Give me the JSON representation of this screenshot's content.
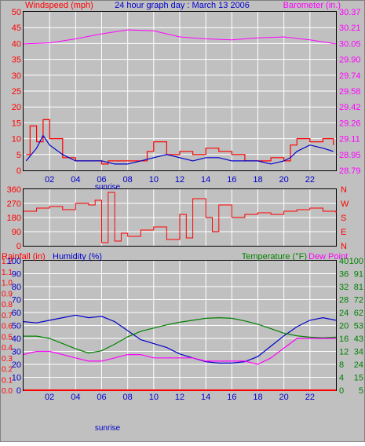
{
  "colors": {
    "panel_bg": "#c0c0c0",
    "windspeed": "#ff0000",
    "wind_avg": "#0000cc",
    "barometer": "#ff00ff",
    "direction": "#ff0000",
    "rainfall": "#ff0000",
    "humidity": "#0000cc",
    "temperature": "#008000",
    "dewpoint": "#ff00ff",
    "title": "#0000cc",
    "grid": "#ffffff"
  },
  "header": {
    "windspeed_label": "Windspeed (mph)",
    "title": "24 hour graph day : March 13 2006",
    "barometer_label": "Barometer (in.)"
  },
  "legend": {
    "rainfall_label": "Rainfall (in)",
    "humidity_label": "Humidity (%)",
    "temperature_label": "Temperature (°F)",
    "dewpoint_label": "Dew Point"
  },
  "sunrise_label": "sunrise",
  "chart_data": [
    {
      "type": "line",
      "name": "wind-barometer",
      "x_ticks": [
        "02",
        "04",
        "06",
        "08",
        "10",
        "12",
        "14",
        "16",
        "18",
        "20",
        "22"
      ],
      "y_left_ticks": [
        "0",
        "5",
        "10",
        "15",
        "20",
        "25",
        "30",
        "35",
        "40",
        "45",
        "50"
      ],
      "y_right_ticks": [
        "28.79",
        "28.95",
        "29.11",
        "29.26",
        "29.42",
        "29.58",
        "29.74",
        "29.90",
        "30.05",
        "30.21",
        "30.37"
      ],
      "ylim_left": [
        0,
        50
      ],
      "ylim_right": [
        28.79,
        30.37
      ],
      "series": [
        {
          "name": "Windspeed",
          "axis": "left",
          "x": [
            0.2,
            0.5,
            1,
            1.5,
            2,
            3,
            4,
            5,
            6,
            6.5,
            7,
            8,
            9,
            9.5,
            10,
            11,
            12,
            13,
            14,
            15,
            16,
            17,
            18,
            19,
            20,
            20.5,
            21,
            22,
            23,
            23.8
          ],
          "y": [
            5,
            14,
            9,
            16,
            10,
            4,
            3,
            3,
            2,
            3,
            3,
            3,
            3,
            6,
            9,
            5,
            6,
            5,
            7,
            6,
            5,
            3,
            3,
            4,
            3,
            8,
            10,
            9,
            10,
            8
          ]
        },
        {
          "name": "Wind average",
          "axis": "left",
          "x": [
            0.2,
            1,
            1.5,
            2,
            3,
            4,
            5,
            6,
            7,
            8,
            9,
            10,
            11,
            12,
            13,
            14,
            15,
            16,
            17,
            18,
            19,
            20,
            20.5,
            21,
            22,
            23,
            23.8
          ],
          "y": [
            3,
            7,
            11,
            8,
            5,
            3,
            3,
            3,
            2,
            2,
            3,
            4,
            5,
            4,
            3,
            4,
            4,
            3,
            3,
            3,
            2,
            3,
            4,
            6,
            8,
            7,
            6
          ]
        },
        {
          "name": "Barometer",
          "axis": "right",
          "x": [
            0,
            2,
            4,
            6,
            8,
            10,
            12,
            14,
            16,
            18,
            20,
            22,
            24
          ],
          "y": [
            30.05,
            30.06,
            30.1,
            30.15,
            30.19,
            30.18,
            30.12,
            30.1,
            30.09,
            30.11,
            30.12,
            30.09,
            30.05
          ]
        }
      ]
    },
    {
      "type": "line",
      "name": "wind-direction",
      "x_ticks": [
        "02",
        "04",
        "06",
        "08",
        "10",
        "12",
        "14",
        "16",
        "18",
        "20",
        "22"
      ],
      "y_left_ticks": [
        "0",
        "90",
        "180",
        "270",
        "360"
      ],
      "y_right_ticks": [
        "N",
        "E",
        "S",
        "W",
        "N"
      ],
      "ylim": [
        0,
        360
      ],
      "series": [
        {
          "name": "Direction",
          "x": [
            0,
            1,
            2,
            3,
            4,
            5,
            5.5,
            6,
            6.5,
            7,
            7.5,
            8,
            9,
            10,
            11,
            12,
            12.5,
            13,
            14,
            14.5,
            15,
            16,
            17,
            18,
            19,
            20,
            21,
            22,
            23,
            24
          ],
          "y": [
            220,
            240,
            250,
            230,
            270,
            260,
            290,
            20,
            340,
            30,
            80,
            60,
            100,
            120,
            40,
            200,
            50,
            300,
            180,
            90,
            260,
            180,
            200,
            210,
            200,
            220,
            230,
            240,
            220,
            210
          ]
        }
      ]
    },
    {
      "type": "line",
      "name": "climate",
      "x_ticks": [
        "02",
        "04",
        "06",
        "08",
        "10",
        "12",
        "14",
        "16",
        "18",
        "20",
        "22"
      ],
      "rain_ticks": [
        "0.0",
        "0.1",
        "0.2",
        "0.3",
        "0.4",
        "0.5",
        "0.6",
        "0.7",
        "0.8",
        "0.9",
        "1.0",
        "1.1",
        "1.2"
      ],
      "humidity_ticks": [
        "0",
        "10",
        "20",
        "30",
        "40",
        "50",
        "60",
        "70",
        "80",
        "90",
        "100"
      ],
      "temp_ticks": [
        "0",
        "4",
        "8",
        "12",
        "16",
        "20",
        "24",
        "28",
        "32",
        "36",
        "40"
      ],
      "dew_ticks": [
        "5",
        "15",
        "24",
        "34",
        "43",
        "53",
        "62",
        "72",
        "81",
        "91",
        "100"
      ],
      "ylim": [
        0,
        100
      ],
      "series": [
        {
          "name": "Humidity",
          "x": [
            0,
            1,
            2,
            3,
            4,
            5,
            6,
            7,
            8,
            9,
            10,
            11,
            12,
            13,
            14,
            15,
            16,
            17,
            18,
            19,
            20,
            21,
            22,
            23,
            24
          ],
          "y": [
            53,
            52,
            54,
            56,
            58,
            56,
            57,
            53,
            46,
            39,
            36,
            33,
            28,
            25,
            22,
            21,
            21,
            22,
            26,
            34,
            42,
            49,
            54,
            56,
            54
          ]
        },
        {
          "name": "Temperature",
          "x": [
            0,
            1,
            2,
            3,
            4,
            5,
            6,
            7,
            8,
            9,
            10,
            11,
            12,
            13,
            14,
            15,
            16,
            17,
            18,
            19,
            20,
            21,
            22,
            23,
            24
          ],
          "y": [
            16.7,
            16.7,
            16,
            14.4,
            12.8,
            11.5,
            12.2,
            14.2,
            16.5,
            18.2,
            19.2,
            20.2,
            21,
            21.6,
            22.2,
            22.4,
            22.2,
            21.4,
            20.4,
            19,
            17.6,
            16.8,
            16.4,
            16.2,
            16.4
          ]
        },
        {
          "name": "Dew Point",
          "x": [
            0,
            1,
            2,
            3,
            4,
            5,
            6,
            7,
            8,
            9,
            10,
            11,
            12,
            13,
            14,
            15,
            16,
            17,
            18,
            19,
            20,
            21,
            22,
            23,
            24
          ],
          "y": [
            11,
            12,
            12,
            11,
            10,
            9,
            9,
            10,
            11,
            11,
            10,
            10,
            10,
            10,
            9,
            9,
            9,
            9,
            8,
            10,
            13,
            16,
            16,
            16,
            16
          ]
        },
        {
          "name": "Rainfall",
          "x": [
            0,
            24
          ],
          "y": [
            0,
            0
          ]
        }
      ]
    }
  ]
}
